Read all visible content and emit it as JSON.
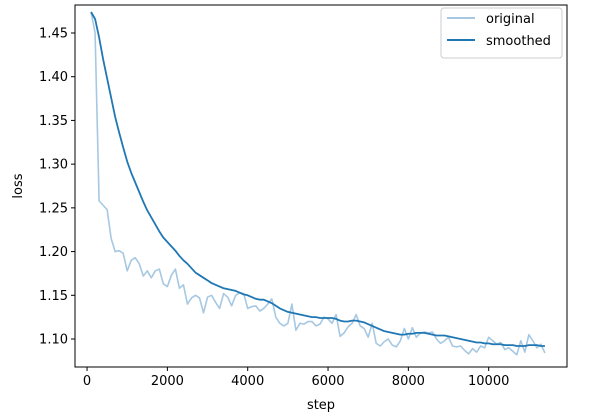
{
  "chart_data": {
    "type": "line",
    "title": "",
    "xlabel": "step",
    "ylabel": "loss",
    "xlim": [
      -300,
      11950
    ],
    "ylim": [
      1.068,
      1.482
    ],
    "xticks": [
      0,
      2000,
      4000,
      6000,
      8000,
      10000
    ],
    "xtick_labels": [
      "0",
      "2000",
      "4000",
      "6000",
      "8000",
      "10000"
    ],
    "yticks": [
      1.1,
      1.15,
      1.2,
      1.25,
      1.3,
      1.35,
      1.4,
      1.45
    ],
    "ytick_labels": [
      "1.10",
      "1.15",
      "1.20",
      "1.25",
      "1.30",
      "1.35",
      "1.40",
      "1.45"
    ],
    "grid": false,
    "legend_position": "top-right",
    "series": [
      {
        "name": "original",
        "color": "#a6c8e2",
        "x": [
          100,
          200,
          300,
          400,
          500,
          600,
          700,
          800,
          900,
          1000,
          1100,
          1200,
          1300,
          1400,
          1500,
          1600,
          1700,
          1800,
          1900,
          2000,
          2100,
          2200,
          2300,
          2400,
          2500,
          2600,
          2700,
          2800,
          2900,
          3000,
          3100,
          3200,
          3300,
          3400,
          3500,
          3600,
          3700,
          3800,
          3900,
          4000,
          4100,
          4200,
          4300,
          4400,
          4500,
          4600,
          4700,
          4800,
          4900,
          5000,
          5100,
          5200,
          5300,
          5400,
          5500,
          5600,
          5700,
          5800,
          5900,
          6000,
          6100,
          6200,
          6300,
          6400,
          6500,
          6600,
          6700,
          6800,
          6900,
          7000,
          7100,
          7200,
          7300,
          7400,
          7500,
          7600,
          7700,
          7800,
          7900,
          8000,
          8100,
          8200,
          8300,
          8400,
          8500,
          8600,
          8700,
          8800,
          8900,
          9000,
          9100,
          9200,
          9300,
          9400,
          9500,
          9600,
          9700,
          9800,
          9900,
          10000,
          10100,
          10200,
          10300,
          10400,
          10500,
          10600,
          10700,
          10800,
          10900,
          11000,
          11100,
          11200,
          11300,
          11400
        ],
        "y": [
          1.474,
          1.45,
          1.258,
          1.253,
          1.248,
          1.215,
          1.2,
          1.201,
          1.198,
          1.178,
          1.19,
          1.193,
          1.186,
          1.172,
          1.178,
          1.17,
          1.178,
          1.18,
          1.163,
          1.16,
          1.173,
          1.18,
          1.158,
          1.162,
          1.14,
          1.147,
          1.15,
          1.147,
          1.13,
          1.148,
          1.15,
          1.142,
          1.135,
          1.152,
          1.148,
          1.138,
          1.15,
          1.153,
          1.152,
          1.135,
          1.137,
          1.138,
          1.132,
          1.135,
          1.14,
          1.146,
          1.125,
          1.118,
          1.115,
          1.118,
          1.14,
          1.11,
          1.118,
          1.117,
          1.12,
          1.12,
          1.115,
          1.117,
          1.125,
          1.123,
          1.118,
          1.128,
          1.103,
          1.107,
          1.114,
          1.118,
          1.128,
          1.115,
          1.112,
          1.102,
          1.118,
          1.095,
          1.092,
          1.097,
          1.1,
          1.093,
          1.091,
          1.098,
          1.112,
          1.1,
          1.113,
          1.102,
          1.107,
          1.108,
          1.107,
          1.108,
          1.1,
          1.095,
          1.098,
          1.102,
          1.092,
          1.091,
          1.092,
          1.087,
          1.083,
          1.089,
          1.085,
          1.092,
          1.09,
          1.102,
          1.098,
          1.094,
          1.096,
          1.088,
          1.09,
          1.086,
          1.082,
          1.098,
          1.085,
          1.105,
          1.098,
          1.09,
          1.094,
          1.084
        ]
      },
      {
        "name": "smoothed",
        "color": "#1f77b4",
        "x": [
          100,
          200,
          300,
          400,
          500,
          600,
          700,
          800,
          900,
          1000,
          1100,
          1200,
          1300,
          1400,
          1500,
          1600,
          1700,
          1800,
          1900,
          2000,
          2100,
          2200,
          2300,
          2400,
          2500,
          2600,
          2700,
          2800,
          2900,
          3000,
          3100,
          3200,
          3300,
          3400,
          3500,
          3600,
          3700,
          3800,
          3900,
          4000,
          4100,
          4200,
          4300,
          4400,
          4500,
          4600,
          4700,
          4800,
          4900,
          5000,
          5100,
          5200,
          5300,
          5400,
          5500,
          5600,
          5700,
          5800,
          5900,
          6000,
          6100,
          6200,
          6300,
          6400,
          6500,
          6600,
          6700,
          6800,
          6900,
          7000,
          7100,
          7200,
          7300,
          7400,
          7500,
          7600,
          7700,
          7800,
          7900,
          8000,
          8100,
          8200,
          8300,
          8400,
          8500,
          8600,
          8700,
          8800,
          8900,
          9000,
          9100,
          9200,
          9300,
          9400,
          9500,
          9600,
          9700,
          9800,
          9900,
          10000,
          10100,
          10200,
          10300,
          10400,
          10500,
          10600,
          10700,
          10800,
          10900,
          11000,
          11100,
          11200,
          11300,
          11400
        ],
        "y": [
          1.474,
          1.466,
          1.445,
          1.42,
          1.398,
          1.376,
          1.354,
          1.336,
          1.319,
          1.303,
          1.29,
          1.279,
          1.268,
          1.257,
          1.247,
          1.239,
          1.231,
          1.223,
          1.216,
          1.211,
          1.206,
          1.201,
          1.195,
          1.19,
          1.186,
          1.181,
          1.176,
          1.173,
          1.17,
          1.167,
          1.164,
          1.162,
          1.16,
          1.158,
          1.157,
          1.156,
          1.155,
          1.153,
          1.151,
          1.15,
          1.148,
          1.146,
          1.145,
          1.145,
          1.143,
          1.141,
          1.138,
          1.135,
          1.133,
          1.131,
          1.13,
          1.129,
          1.128,
          1.127,
          1.126,
          1.125,
          1.125,
          1.124,
          1.124,
          1.124,
          1.124,
          1.123,
          1.121,
          1.12,
          1.12,
          1.121,
          1.121,
          1.12,
          1.119,
          1.117,
          1.115,
          1.113,
          1.111,
          1.109,
          1.108,
          1.107,
          1.106,
          1.105,
          1.105,
          1.106,
          1.106,
          1.107,
          1.107,
          1.107,
          1.106,
          1.105,
          1.104,
          1.104,
          1.104,
          1.103,
          1.102,
          1.101,
          1.1,
          1.099,
          1.098,
          1.097,
          1.096,
          1.096,
          1.095,
          1.095,
          1.094,
          1.094,
          1.094,
          1.093,
          1.093,
          1.093,
          1.092,
          1.092,
          1.092,
          1.093,
          1.093,
          1.093,
          1.092,
          1.092
        ]
      }
    ]
  }
}
